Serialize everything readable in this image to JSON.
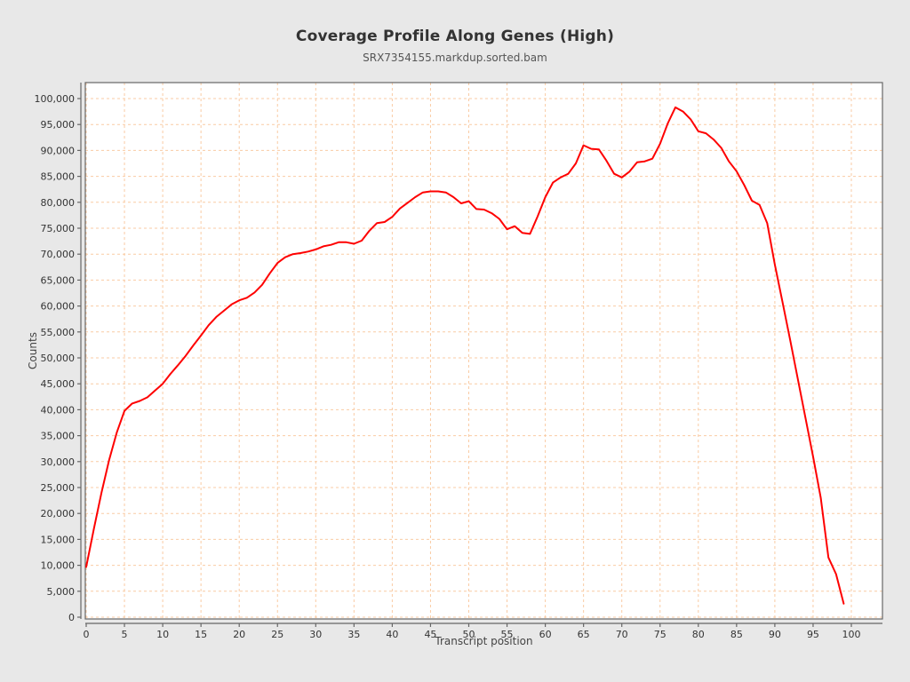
{
  "page": {
    "background": "#e8e8e8"
  },
  "chart_data": {
    "type": "line",
    "title": "Coverage Profile Along Genes (High)",
    "subtitle": "SRX7354155.markdup.sorted.bam",
    "xlabel": "Transcript position",
    "ylabel": "Counts",
    "x_description": "transcript position 0-99 (array index)",
    "xlim": [
      0,
      104
    ],
    "ylim": [
      0,
      103000
    ],
    "x_ticks": [
      0,
      5,
      10,
      15,
      20,
      25,
      30,
      35,
      40,
      45,
      50,
      55,
      60,
      65,
      70,
      75,
      80,
      85,
      90,
      95,
      100
    ],
    "y_ticks": [
      0,
      5000,
      10000,
      15000,
      20000,
      25000,
      30000,
      35000,
      40000,
      45000,
      50000,
      55000,
      60000,
      65000,
      70000,
      75000,
      80000,
      85000,
      90000,
      95000,
      100000
    ],
    "grid": "dashed",
    "legend": "none",
    "series": [
      {
        "name": "coverage",
        "color": "#fe0000",
        "values": [
          9700,
          17000,
          24000,
          30300,
          35600,
          39800,
          41200,
          41700,
          42400,
          43700,
          45000,
          46900,
          48600,
          50400,
          52400,
          54300,
          56300,
          57900,
          59100,
          60300,
          61100,
          61600,
          62600,
          64100,
          66300,
          68300,
          69400,
          70000,
          70200,
          70500,
          70900,
          71500,
          71800,
          72300,
          72300,
          72000,
          72600,
          74500,
          76000,
          76200,
          77200,
          78800,
          79900,
          81000,
          81900,
          82100,
          82100,
          81900,
          81000,
          79800,
          80200,
          78700,
          78600,
          77900,
          76800,
          74800,
          75400,
          74100,
          73900,
          77300,
          81000,
          83800,
          84800,
          85500,
          87500,
          91000,
          90300,
          90200,
          88000,
          85500,
          84800,
          85900,
          87700,
          87900,
          88400,
          91300,
          95200,
          98300,
          97500,
          96000,
          93700,
          93300,
          92100,
          90500,
          87900,
          86000,
          83300,
          80300,
          79500,
          76000,
          68000,
          60800,
          53500,
          46000,
          38500,
          31000,
          23000,
          11500,
          8300,
          2600
        ]
      }
    ],
    "style": {
      "plot_background": "#ffffff",
      "border_color": "#666666",
      "grid_color": "#f9cba4",
      "tick_label_color": "#333333",
      "axis_title_color": "#444444",
      "title_color": "#333333",
      "subtitle_color": "#555555"
    }
  }
}
